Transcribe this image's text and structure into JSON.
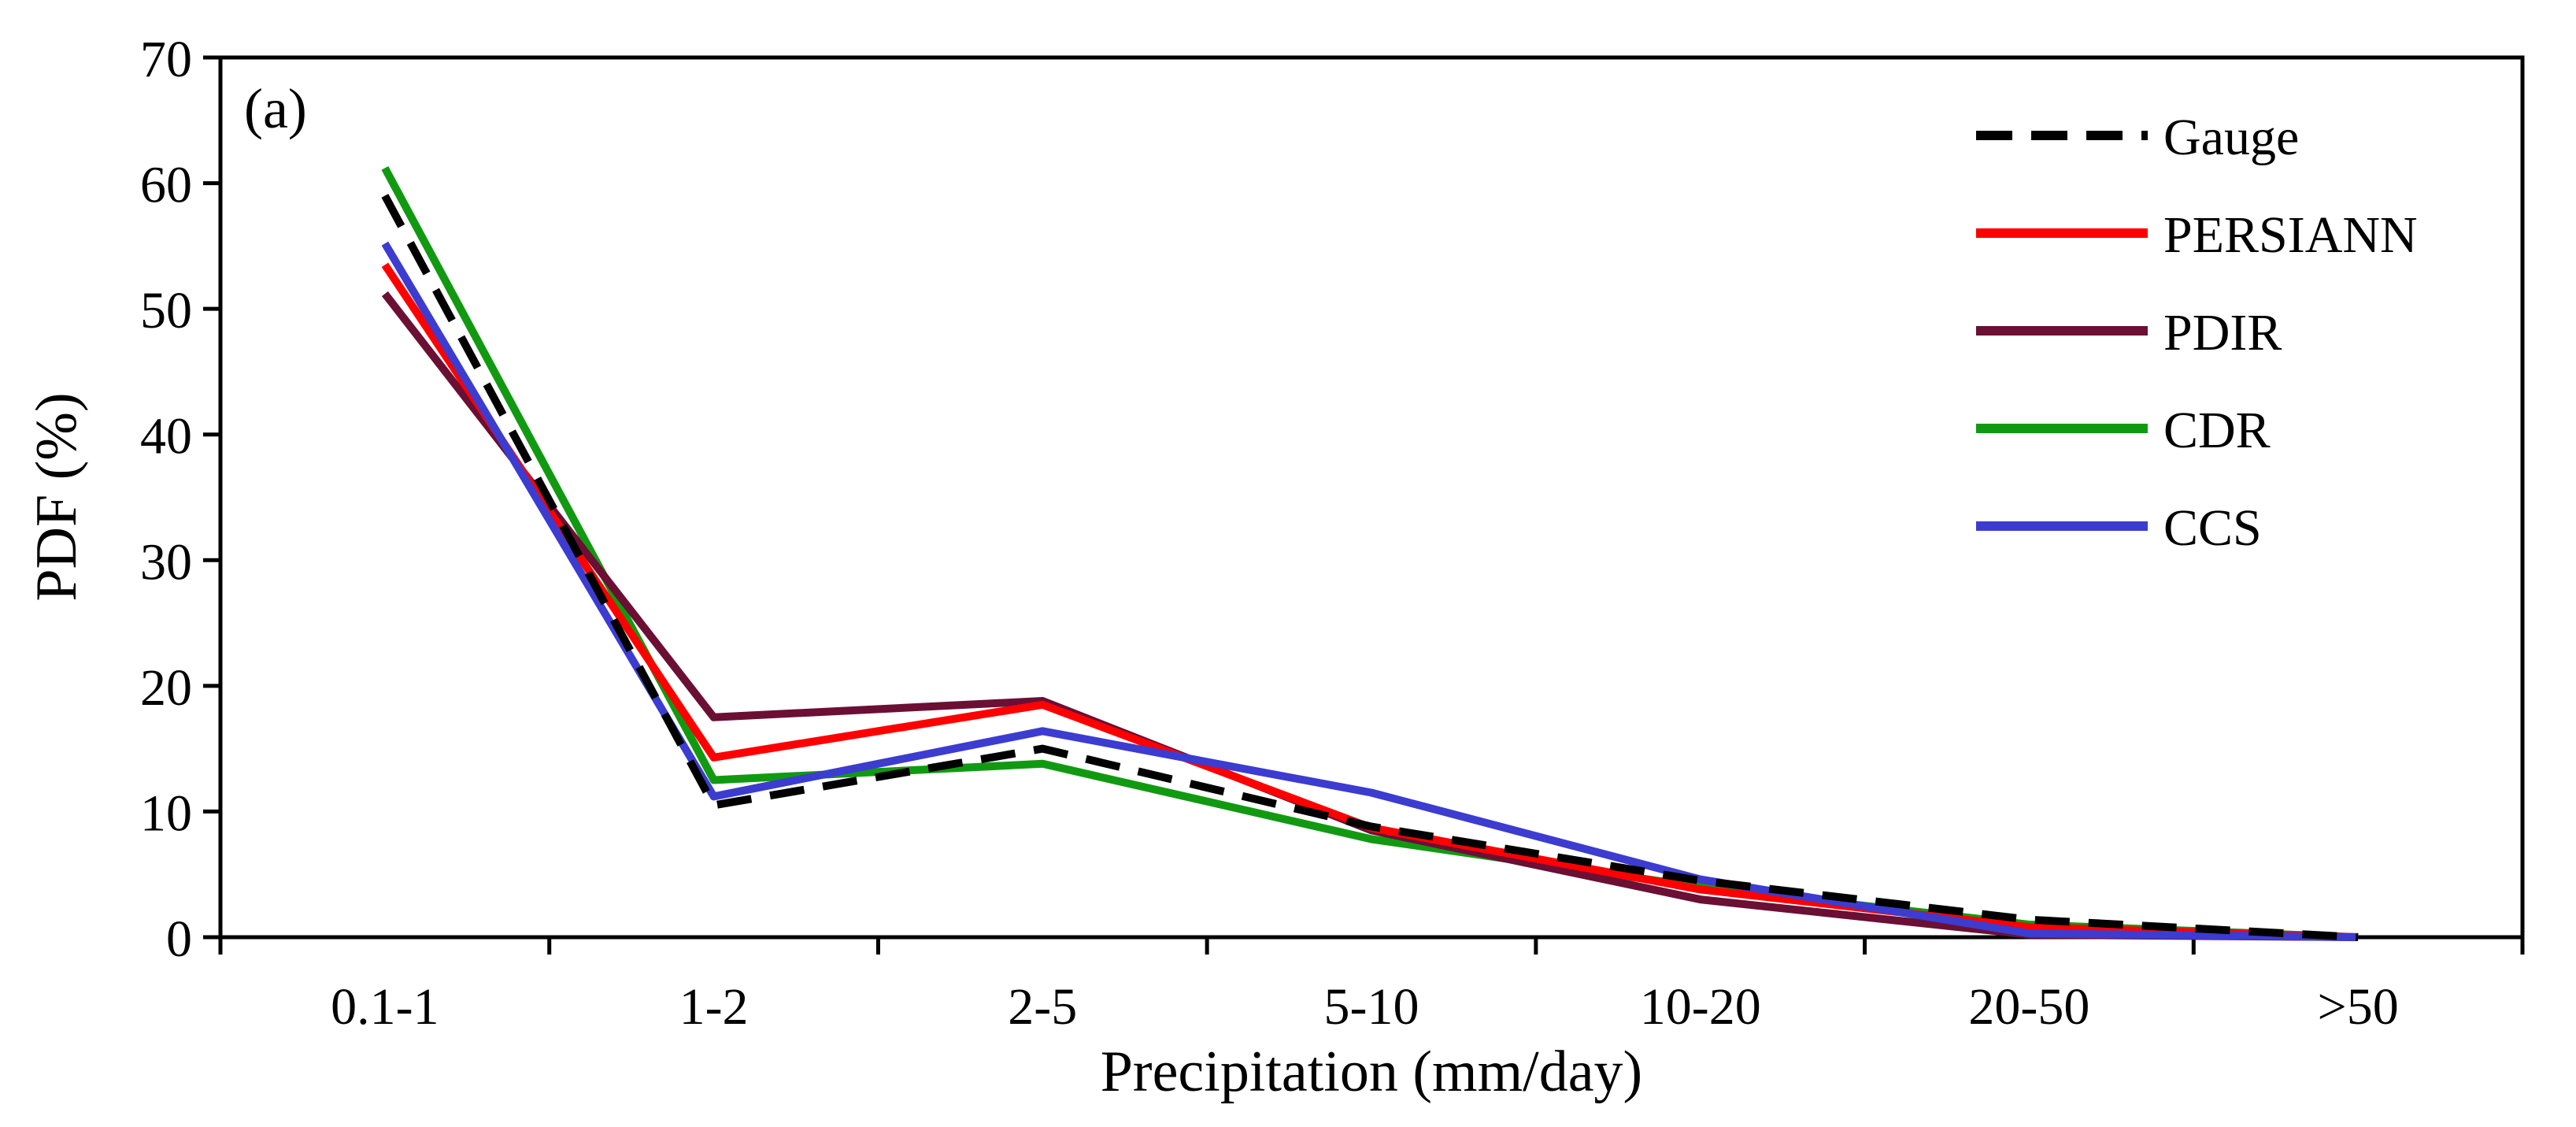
{
  "chart_data": {
    "type": "line",
    "panel_label": "(a)",
    "xlabel": "Precipitation (mm/day)",
    "ylabel": "PDF (%)",
    "ylim": [
      0,
      70
    ],
    "yticks": [
      "0",
      "10",
      "20",
      "30",
      "40",
      "50",
      "60",
      "70"
    ],
    "categories": [
      "0.1-1",
      "1-2",
      "2-5",
      "5-10",
      "10-20",
      "20-50",
      ">50"
    ],
    "grid": false,
    "legend_position": "top-right",
    "series": [
      {
        "name": "Gauge",
        "color": "#000000",
        "dashed": true,
        "values": [
          59,
          10.5,
          15,
          8.8,
          4.5,
          1.4,
          0
        ]
      },
      {
        "name": "PERSIANN",
        "color": "#ff0000",
        "dashed": false,
        "values": [
          53.5,
          14.3,
          18.5,
          8.7,
          3.8,
          0.8,
          0
        ]
      },
      {
        "name": "PDIR",
        "color": "#6b0f35",
        "dashed": false,
        "values": [
          51.2,
          17.5,
          18.8,
          8.5,
          3.0,
          0.2,
          0
        ]
      },
      {
        "name": "CDR",
        "color": "#119a11",
        "dashed": false,
        "values": [
          61.2,
          12.5,
          13.8,
          7.8,
          4.0,
          1.0,
          0
        ]
      },
      {
        "name": "CCS",
        "color": "#3c3cd0",
        "dashed": false,
        "values": [
          55.2,
          11.2,
          16.4,
          11.5,
          4.6,
          0.3,
          0
        ]
      }
    ]
  }
}
